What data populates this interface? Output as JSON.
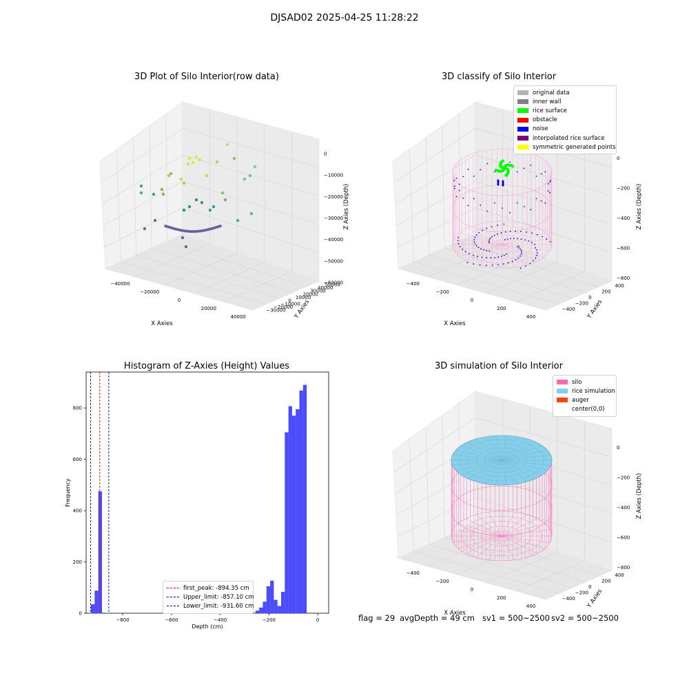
{
  "suptitle": "DJSAD02 2025-04-25 11:28:22",
  "panels": {
    "raw": {
      "title": "3D Plot of Silo Interior(row data)",
      "x_label": "X Axies",
      "y_label": "Y Axies",
      "z_label": "Z Axies (Depth)",
      "x_ticks": [
        "−40000",
        "−20000",
        "0",
        "20000",
        "40000"
      ],
      "y_ticks": [
        "50000",
        "40000",
        "30000",
        "20000",
        "10000",
        "0",
        "−10000",
        "−20000",
        "−30000"
      ],
      "z_ticks": [
        "0",
        "−10000",
        "−20000",
        "−30000",
        "−40000",
        "−50000",
        "−60000"
      ]
    },
    "classify": {
      "title": "3D classify of Silo Interior",
      "x_label": "X Axies",
      "y_label": "Y Axies",
      "z_label": "Z Axies (Depth)",
      "x_ticks": [
        "−400",
        "−200",
        "0",
        "200",
        "400"
      ],
      "y_ticks": [
        "400",
        "200",
        "0",
        "−200",
        "−400"
      ],
      "z_ticks": [
        "0",
        "−200",
        "−400",
        "−600",
        "−800"
      ],
      "legend": [
        {
          "label": "original data",
          "color": "#b3b3b3"
        },
        {
          "label": "inner wall",
          "color": "#808080"
        },
        {
          "label": "rice surface",
          "color": "#00ff00"
        },
        {
          "label": "obstacle",
          "color": "#ff0000"
        },
        {
          "label": "noise",
          "color": "#0000ff"
        },
        {
          "label": "interpolated rice surface",
          "color": "#800080"
        },
        {
          "label": "symmetric generated points",
          "color": "#ffff00"
        }
      ]
    },
    "simulation": {
      "title": "3D simulation of Silo Interior",
      "x_label": "X Axies",
      "y_label": "Y Axies",
      "z_label": "Z Axies (Depth)",
      "x_ticks": [
        "−400",
        "−200",
        "0",
        "200",
        "400"
      ],
      "y_ticks": [
        "400",
        "200",
        "0",
        "−200",
        "−400"
      ],
      "z_ticks": [
        "0",
        "−200",
        "−400",
        "−600",
        "−800"
      ],
      "legend": [
        {
          "label": "silo",
          "color": "#ff69b4"
        },
        {
          "label": "rice simulation",
          "color": "#87ceeb"
        },
        {
          "label": "auger",
          "color": "#ff4500"
        },
        {
          "label": "center(0,0)",
          "color": "#ffffff"
        }
      ]
    }
  },
  "chart_data": {
    "type": "bar",
    "title": "Histogram of Z-Axies (Height) Values",
    "xlabel": "Depth (cm)",
    "ylabel": "Frequency",
    "xlim": [
      -950,
      45
    ],
    "ylim": [
      0,
      940
    ],
    "x_ticks": [
      -800,
      -600,
      -400,
      -200,
      0
    ],
    "y_ticks": [
      0,
      200,
      400,
      600,
      800
    ],
    "bin_width": 15,
    "bars": [
      {
        "x": -930,
        "value": 35
      },
      {
        "x": -915,
        "value": 88
      },
      {
        "x": -900,
        "value": 475
      },
      {
        "x": -885,
        "value": 2
      },
      {
        "x": -255,
        "value": 10
      },
      {
        "x": -240,
        "value": 22
      },
      {
        "x": -225,
        "value": 45
      },
      {
        "x": -210,
        "value": 105
      },
      {
        "x": -195,
        "value": 127
      },
      {
        "x": -180,
        "value": 52
      },
      {
        "x": -165,
        "value": 28
      },
      {
        "x": -150,
        "value": 83
      },
      {
        "x": -135,
        "value": 705
      },
      {
        "x": -120,
        "value": 807
      },
      {
        "x": -105,
        "value": 770
      },
      {
        "x": -90,
        "value": 795
      },
      {
        "x": -75,
        "value": 868
      },
      {
        "x": -60,
        "value": 890
      }
    ],
    "bar_color": "#4b4bff",
    "lines": [
      {
        "label": "first_peak: -894.35 cm",
        "x": -894.35,
        "color": "#ff0000"
      },
      {
        "label": "Upper_limit: -857.10 cm",
        "x": -857.1,
        "color": "#0000cc"
      },
      {
        "label": "Lower_limit: -931.60 cm",
        "x": -931.6,
        "color": "#0000cc"
      }
    ],
    "grid": false,
    "legend_position": "lower-center"
  },
  "footer": {
    "flag": "flag = 29",
    "avg": "avgDepth = 49 cm",
    "sv1": "sv1 = 500~2500",
    "sv2": "sv2 = 500~2500"
  }
}
